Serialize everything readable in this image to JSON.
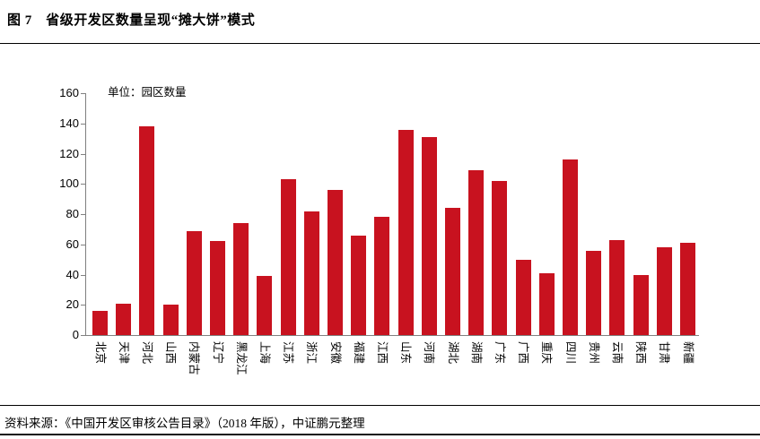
{
  "figure": {
    "title": "图 7　省级开发区数量呈现“摊大饼”模式",
    "source": "资料来源：《中国开发区审核公告目录》（2018 年版），中证鹏元整理"
  },
  "chart_data": {
    "type": "bar",
    "title": "省级开发区数量呈现“摊大饼”模式",
    "unit_label": "单位：园区数量",
    "categories": [
      "北京",
      "天津",
      "河北",
      "山西",
      "内蒙古",
      "辽宁",
      "黑龙江",
      "上海",
      "江苏",
      "浙江",
      "安徽",
      "福建",
      "江西",
      "山东",
      "河南",
      "湖北",
      "湖南",
      "广东",
      "广西",
      "重庆",
      "四川",
      "贵州",
      "云南",
      "陕西",
      "甘肃",
      "新疆"
    ],
    "values": [
      16,
      21,
      138,
      20,
      69,
      62,
      74,
      39,
      103,
      82,
      96,
      66,
      78,
      136,
      131,
      84,
      109,
      102,
      50,
      41,
      116,
      56,
      63,
      40,
      58,
      61
    ],
    "xlabel": "",
    "ylabel": "",
    "ylim": [
      0,
      160
    ],
    "yticks": [
      0,
      20,
      40,
      60,
      80,
      100,
      120,
      140,
      160
    ],
    "grid": false,
    "legend_position": "none",
    "bar_color": "#C8121F",
    "axis_color": "#808080"
  }
}
